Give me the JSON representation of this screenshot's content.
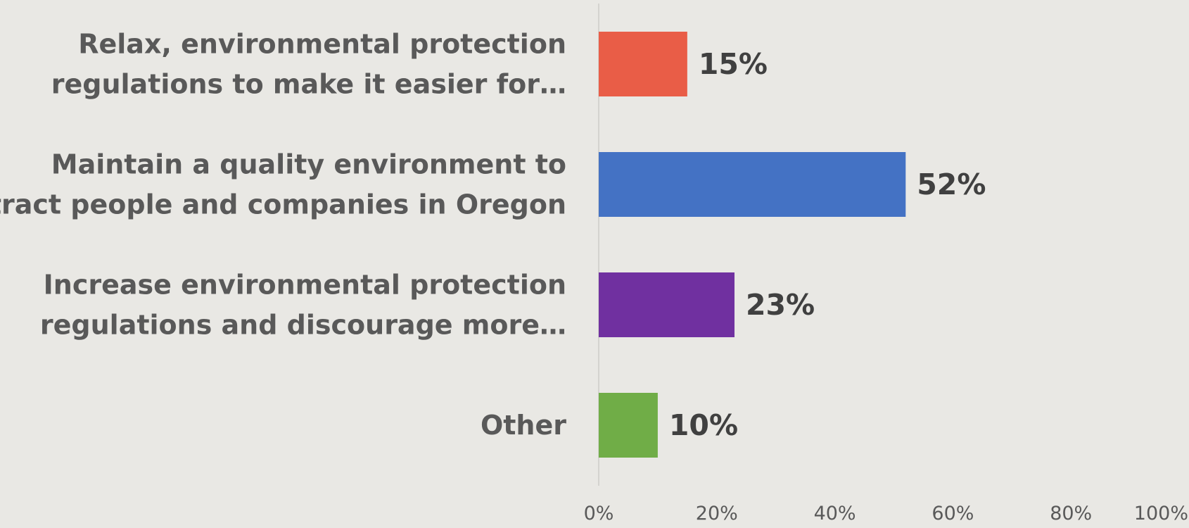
{
  "chart_data": {
    "type": "bar",
    "orientation": "horizontal",
    "categories": [
      [
        "Relax, environmental protection",
        "regulations to make it easier for…"
      ],
      [
        "Maintain a quality environment to",
        "attract people and companies in Oregon"
      ],
      [
        "Increase environmental protection",
        "regulations and discourage more…"
      ],
      [
        "Other"
      ]
    ],
    "values": [
      15,
      52,
      23,
      10
    ],
    "value_labels": [
      "15%",
      "52%",
      "23%",
      "10%"
    ],
    "colors": [
      "#e95d47",
      "#4472c4",
      "#7030a0",
      "#70ad47"
    ],
    "xlim": [
      0,
      100
    ],
    "x_ticks": [
      0,
      20,
      40,
      60,
      80,
      100
    ],
    "x_tick_labels": [
      "0%",
      "20%",
      "40%",
      "60%",
      "80%",
      "100%"
    ],
    "grid": false,
    "legend": "none",
    "title": "",
    "xlabel": "",
    "ylabel": ""
  }
}
